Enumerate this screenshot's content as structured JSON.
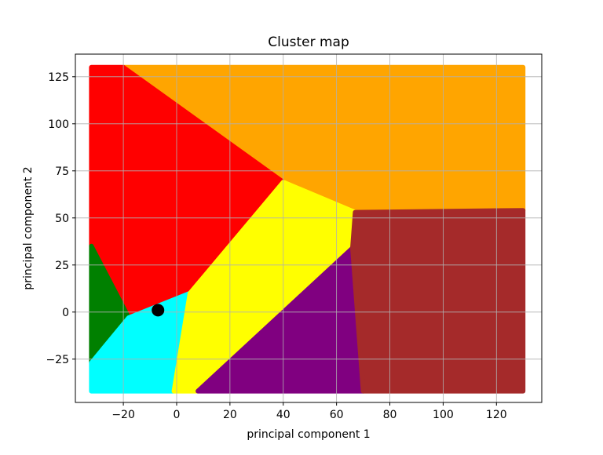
{
  "chart_data": {
    "type": "scatter",
    "title": "Cluster map",
    "xlabel": "principal component 1",
    "ylabel": "principal component 2",
    "xlim": [
      -38,
      137
    ],
    "ylim": [
      -48,
      137
    ],
    "xticks": [
      -20,
      0,
      20,
      40,
      60,
      80,
      100,
      120
    ],
    "yticks": [
      -25,
      0,
      25,
      50,
      75,
      100,
      125
    ],
    "grid": true,
    "colors": {
      "green": "#008000",
      "red": "#ff0000",
      "orange": "#ffa500",
      "yellow": "#ffff00",
      "cyan": "#00ffff",
      "purple": "#800080",
      "brown": "#a52a2a",
      "marker": "#000000"
    },
    "regions": [
      {
        "color": "orange",
        "polygon": [
          [
            -20,
            130
          ],
          [
            130,
            130
          ],
          [
            130,
            54
          ],
          [
            67,
            53
          ],
          [
            40,
            69
          ]
        ]
      },
      {
        "color": "red",
        "polygon": [
          [
            -32,
            130
          ],
          [
            -20,
            130
          ],
          [
            40,
            69
          ],
          [
            5,
            10
          ],
          [
            -18,
            -3
          ],
          [
            -32,
            35
          ]
        ]
      },
      {
        "color": "green",
        "polygon": [
          [
            -32,
            35
          ],
          [
            -18,
            -3
          ],
          [
            -32,
            -27
          ]
        ]
      },
      {
        "color": "cyan",
        "polygon": [
          [
            -32,
            -27
          ],
          [
            -18,
            -3
          ],
          [
            5,
            10
          ],
          [
            -1,
            -42
          ],
          [
            -32,
            -42
          ]
        ]
      },
      {
        "color": "yellow",
        "polygon": [
          [
            5,
            10
          ],
          [
            40,
            69
          ],
          [
            67,
            53
          ],
          [
            66,
            34
          ],
          [
            8,
            -42
          ],
          [
            -1,
            -42
          ]
        ]
      },
      {
        "color": "purple",
        "polygon": [
          [
            8,
            -42
          ],
          [
            66,
            34
          ],
          [
            70,
            -42
          ]
        ]
      },
      {
        "color": "brown",
        "polygon": [
          [
            67,
            53
          ],
          [
            130,
            54
          ],
          [
            130,
            -42
          ],
          [
            70,
            -42
          ],
          [
            66,
            34
          ]
        ]
      }
    ],
    "point": {
      "x": -7,
      "y": 1
    }
  }
}
